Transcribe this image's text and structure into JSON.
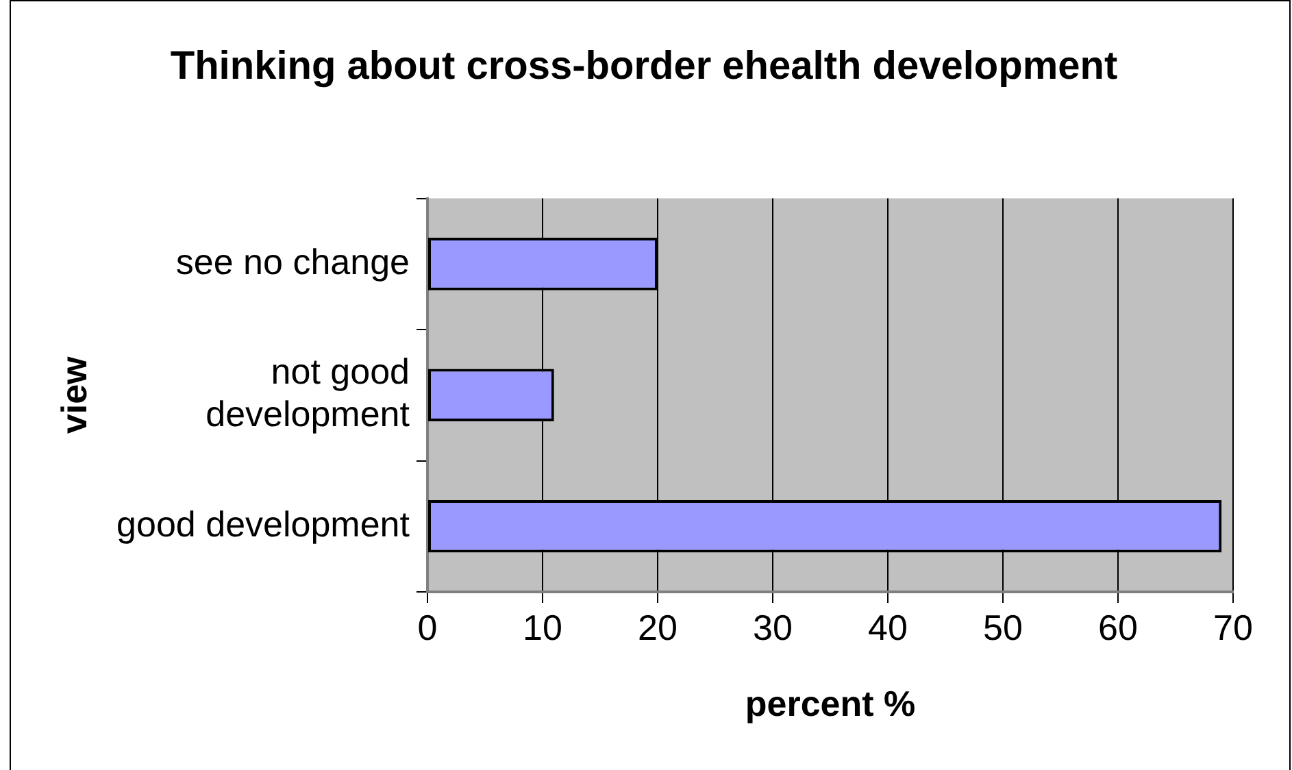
{
  "chart_data": {
    "type": "bar",
    "orientation": "horizontal",
    "title": "Thinking about cross-border ehealth development",
    "xlabel": "percent %",
    "ylabel": "view",
    "categories": [
      "see no change",
      "not good development",
      "good development"
    ],
    "values": [
      20,
      11,
      69
    ],
    "color": "#9999ff",
    "xlim": [
      0,
      70
    ],
    "xticks": [
      0,
      10,
      20,
      30,
      40,
      50,
      60,
      70
    ],
    "grid": "x",
    "legend": false
  }
}
